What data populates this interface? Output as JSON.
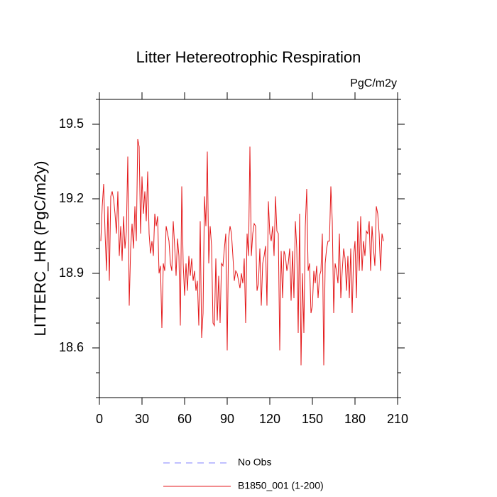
{
  "chart_data": {
    "type": "line",
    "title": "Litter Hetereotrophic Respiration",
    "units": "PgC/m2y",
    "y_label": "LITTERC_HR  (PgC/m2y)",
    "xlim": [
      0,
      210
    ],
    "xticks": [
      0,
      30,
      60,
      90,
      120,
      150,
      180,
      210
    ],
    "ylim": [
      18.4,
      19.6
    ],
    "yticks": [
      18.6,
      18.9,
      19.2,
      19.5
    ],
    "yminorticks": [
      18.4,
      18.5,
      18.7,
      18.8,
      19.0,
      19.1,
      19.3,
      19.4,
      19.6
    ],
    "legend_items": [
      {
        "label": "No Obs",
        "color": "#8080ff",
        "dash": true
      }
    ],
    "x": [
      1,
      2,
      3,
      4,
      5,
      6,
      7,
      8,
      9,
      10,
      11,
      12,
      13,
      14,
      15,
      16,
      17,
      18,
      19,
      20,
      21,
      22,
      23,
      24,
      25,
      26,
      27,
      28,
      29,
      30,
      31,
      32,
      33,
      34,
      35,
      36,
      37,
      38,
      39,
      40,
      41,
      42,
      43,
      44,
      45,
      46,
      47,
      48,
      49,
      50,
      51,
      52,
      53,
      54,
      55,
      56,
      57,
      58,
      59,
      60,
      61,
      62,
      63,
      64,
      65,
      66,
      67,
      68,
      69,
      70,
      71,
      72,
      73,
      74,
      75,
      76,
      77,
      78,
      79,
      80,
      81,
      82,
      83,
      84,
      85,
      86,
      87,
      88,
      89,
      90,
      91,
      92,
      93,
      94,
      95,
      96,
      97,
      98,
      99,
      100,
      101,
      102,
      103,
      104,
      105,
      106,
      107,
      108,
      109,
      110,
      111,
      112,
      113,
      114,
      115,
      116,
      117,
      118,
      119,
      120,
      121,
      122,
      123,
      124,
      125,
      126,
      127,
      128,
      129,
      130,
      131,
      132,
      133,
      134,
      135,
      136,
      137,
      138,
      139,
      140,
      141,
      142,
      143,
      144,
      145,
      146,
      147,
      148,
      149,
      150,
      151,
      152,
      153,
      154,
      155,
      156,
      157,
      158,
      159,
      160,
      161,
      162,
      163,
      164,
      165,
      166,
      167,
      168,
      169,
      170,
      171,
      172,
      173,
      174,
      175,
      176,
      177,
      178,
      179,
      180,
      181,
      182,
      183,
      184,
      185,
      186,
      187,
      188,
      189,
      190,
      191,
      192,
      193,
      194,
      195,
      196,
      197,
      198,
      199,
      200
    ],
    "series": [
      {
        "name": "B1850_001 (1-200)",
        "color": "#e41a1c",
        "values": [
          19.03,
          19.17,
          19.26,
          19.06,
          18.91,
          19.17,
          18.87,
          19.21,
          19.23,
          19.2,
          19.14,
          19.06,
          19.23,
          18.97,
          19.09,
          18.95,
          19.13,
          19.0,
          19.07,
          19.37,
          18.77,
          19.0,
          19.1,
          19.0,
          19.17,
          19.03,
          19.44,
          19.41,
          19.06,
          19.29,
          19.14,
          19.23,
          19.11,
          19.31,
          19.06,
          18.98,
          19.03,
          18.97,
          19.14,
          19.09,
          19.13,
          18.9,
          18.93,
          18.68,
          18.94,
          18.91,
          19.09,
          19.06,
          19.03,
          18.94,
          18.91,
          19.11,
          19.01,
          18.89,
          19.04,
          18.97,
          18.69,
          19.25,
          18.94,
          18.81,
          18.94,
          18.83,
          18.97,
          18.89,
          18.96,
          18.87,
          18.91,
          18.83,
          18.87,
          18.69,
          19.11,
          18.64,
          18.74,
          19.21,
          19.09,
          19.39,
          18.94,
          19.09,
          19.01,
          18.7,
          18.69,
          18.96,
          18.71,
          18.89,
          18.7,
          18.94,
          18.93,
          19.0,
          19.06,
          18.59,
          19.04,
          19.09,
          19.06,
          18.97,
          18.87,
          18.91,
          18.9,
          18.87,
          18.84,
          18.9,
          18.86,
          18.96,
          18.7,
          19.06,
          18.97,
          19.41,
          18.97,
          19.06,
          19.1,
          19.09,
          18.83,
          18.86,
          19.0,
          18.77,
          18.94,
          18.97,
          19.01,
          18.77,
          19.19,
          19.06,
          19.03,
          19.09,
          18.97,
          19.21,
          19.07,
          19.06,
          18.59,
          18.99,
          18.8,
          18.99,
          18.97,
          18.91,
          18.94,
          19.0,
          18.79,
          18.99,
          18.8,
          19.11,
          19.0,
          18.66,
          19.14,
          18.53,
          18.9,
          18.66,
          19.09,
          19.24,
          18.91,
          18.94,
          18.74,
          18.77,
          18.91,
          18.86,
          18.93,
          18.8,
          18.89,
          18.91,
          19.06,
          18.53,
          18.94,
          19.0,
          19.03,
          19.03,
          19.25,
          19.11,
          18.74,
          18.94,
          18.91,
          18.86,
          19.06,
          18.8,
          18.91,
          19.0,
          18.96,
          18.83,
          18.97,
          18.8,
          19.0,
          18.74,
          18.97,
          19.03,
          18.8,
          19.11,
          18.91,
          19.13,
          18.91,
          19.03,
          18.97,
          19.07,
          19.06,
          19.11,
          18.91,
          19.09,
          19.0,
          18.93,
          19.17,
          19.14,
          19.06,
          18.91,
          19.06,
          19.03
        ]
      }
    ]
  }
}
